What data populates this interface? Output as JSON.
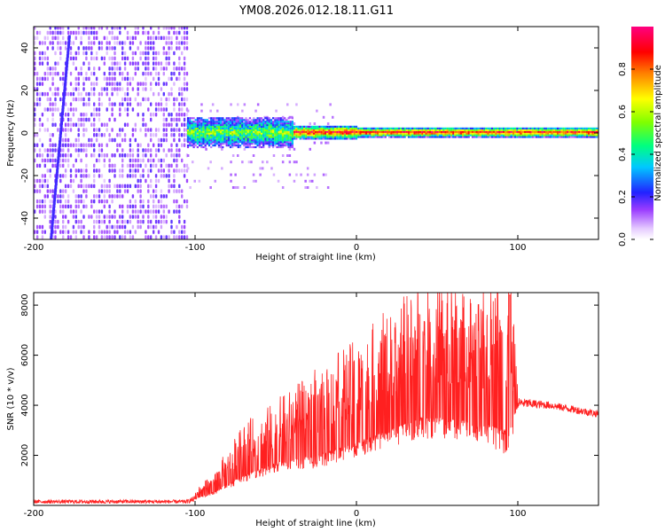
{
  "title": "YM08.2026.012.18.11.G11",
  "chart_data": [
    {
      "type": "heatmap",
      "xlabel": "Height of straight line (km)",
      "ylabel": "Frequency (Hz)",
      "xlim": [
        -200,
        150
      ],
      "ylim": [
        -50,
        50
      ],
      "xticks": [
        -200,
        -100,
        0,
        100
      ],
      "xtick_labels": [
        "-200",
        "-100",
        "0",
        "100"
      ],
      "yticks": [
        -40,
        -20,
        0,
        20,
        40
      ],
      "ytick_labels": [
        "-40",
        "-20",
        "0",
        "20",
        "40"
      ],
      "colorbar": {
        "label": "Normalized spectral amplitude",
        "range": [
          0,
          1
        ],
        "ticks": [
          0,
          0.2,
          0.4,
          0.6,
          0.8
        ],
        "tick_labels": [
          "0.0",
          "0.2",
          "0.4",
          "0.6",
          "0.8"
        ]
      },
      "regions": [
        {
          "x": [
            -200,
            -105
          ],
          "description": "broadband noise",
          "level": 0.15
        },
        {
          "x": [
            -105,
            -40
          ],
          "center_freq": 0,
          "half_width": 7,
          "level": 0.45
        },
        {
          "x": [
            -40,
            150
          ],
          "center_freq": 0,
          "half_width": 2,
          "level": 0.9
        }
      ]
    },
    {
      "type": "line",
      "xlabel": "Height of straight line (km)",
      "ylabel": "SNR (10 * v/v)",
      "xlim": [
        -200,
        150
      ],
      "ylim": [
        0,
        8500
      ],
      "xticks": [
        -200,
        -100,
        0,
        100
      ],
      "xtick_labels": [
        "-200",
        "-100",
        "0",
        "100"
      ],
      "yticks": [
        2000,
        4000,
        6000,
        8000
      ],
      "ytick_labels": [
        "2000",
        "4000",
        "6000",
        "8000"
      ],
      "color": "#ff2020",
      "envelope": [
        {
          "x": -200,
          "base": 150,
          "amp": 150
        },
        {
          "x": -105,
          "base": 150,
          "amp": 150
        },
        {
          "x": -90,
          "base": 500,
          "amp": 500
        },
        {
          "x": -70,
          "base": 1200,
          "amp": 1500
        },
        {
          "x": -50,
          "base": 1700,
          "amp": 1800
        },
        {
          "x": -25,
          "base": 2000,
          "amp": 2500
        },
        {
          "x": 0,
          "base": 2500,
          "amp": 3000
        },
        {
          "x": 20,
          "base": 3000,
          "amp": 3500
        },
        {
          "x": 40,
          "base": 3500,
          "amp": 4000
        },
        {
          "x": 55,
          "base": 3500,
          "amp": 4000
        },
        {
          "x": 75,
          "base": 3300,
          "amp": 3500
        },
        {
          "x": 95,
          "base": 3000,
          "amp": 5000
        },
        {
          "x": 100,
          "base": 4100,
          "amp": 400
        },
        {
          "x": 120,
          "base": 4000,
          "amp": 300
        },
        {
          "x": 150,
          "base": 3650,
          "amp": 300
        }
      ]
    }
  ]
}
